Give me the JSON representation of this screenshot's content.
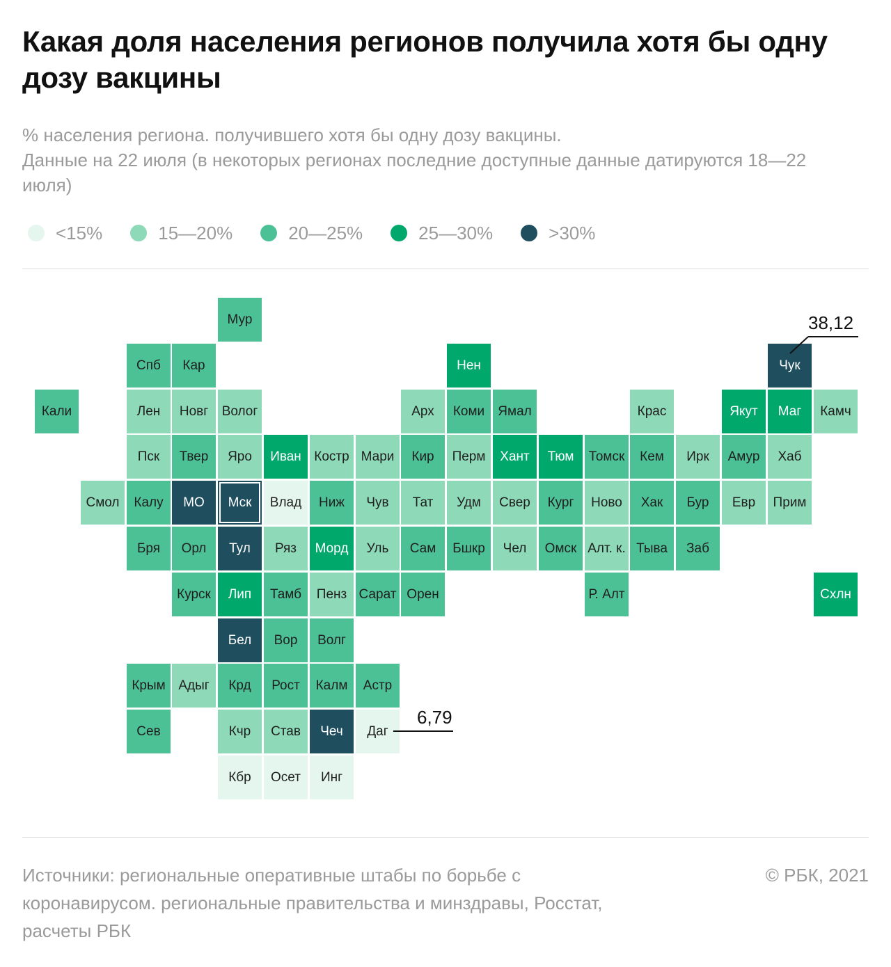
{
  "title": "Какая доля населения регионов получила хотя бы одну дозу вакцины",
  "subtitle": {
    "line1": "% населения региона. получившего хотя бы одну дозу вакцины.",
    "line2": "Данные на 22 июля (в некоторых регионах последние доступные данные датируются 18—22 июля)"
  },
  "legend": [
    {
      "label": "<15%",
      "color": "#e5f6ef"
    },
    {
      "label": "15—20%",
      "color": "#8dd9b8"
    },
    {
      "label": "20—25%",
      "color": "#4dc196"
    },
    {
      "label": "25—30%",
      "color": "#00a86b"
    },
    {
      "label": ">30%",
      "color": "#1f4e5f"
    }
  ],
  "regions": [
    {
      "name": "Мур",
      "col": 4,
      "row": 0,
      "cls": 2
    },
    {
      "name": "Спб",
      "col": 2,
      "row": 1,
      "cls": 2
    },
    {
      "name": "Кар",
      "col": 3,
      "row": 1,
      "cls": 2
    },
    {
      "name": "Нен",
      "col": 9,
      "row": 1,
      "cls": 3
    },
    {
      "name": "Чук",
      "col": 16,
      "row": 1,
      "cls": 4
    },
    {
      "name": "Кали",
      "col": 0,
      "row": 2,
      "cls": 2
    },
    {
      "name": "Лен",
      "col": 2,
      "row": 2,
      "cls": 1
    },
    {
      "name": "Новг",
      "col": 3,
      "row": 2,
      "cls": 1
    },
    {
      "name": "Волог",
      "col": 4,
      "row": 2,
      "cls": 1
    },
    {
      "name": "Арх",
      "col": 8,
      "row": 2,
      "cls": 1
    },
    {
      "name": "Коми",
      "col": 9,
      "row": 2,
      "cls": 2
    },
    {
      "name": "Ямал",
      "col": 10,
      "row": 2,
      "cls": 2
    },
    {
      "name": "Крас",
      "col": 13,
      "row": 2,
      "cls": 1
    },
    {
      "name": "Якут",
      "col": 15,
      "row": 2,
      "cls": 3
    },
    {
      "name": "Маг",
      "col": 16,
      "row": 2,
      "cls": 3
    },
    {
      "name": "Камч",
      "col": 17,
      "row": 2,
      "cls": 1
    },
    {
      "name": "Пск",
      "col": 2,
      "row": 3,
      "cls": 1
    },
    {
      "name": "Твер",
      "col": 3,
      "row": 3,
      "cls": 2
    },
    {
      "name": "Яро",
      "col": 4,
      "row": 3,
      "cls": 1
    },
    {
      "name": "Иван",
      "col": 5,
      "row": 3,
      "cls": 3
    },
    {
      "name": "Костр",
      "col": 6,
      "row": 3,
      "cls": 1
    },
    {
      "name": "Мари",
      "col": 7,
      "row": 3,
      "cls": 1
    },
    {
      "name": "Кир",
      "col": 8,
      "row": 3,
      "cls": 2
    },
    {
      "name": "Перм",
      "col": 9,
      "row": 3,
      "cls": 1
    },
    {
      "name": "Хант",
      "col": 10,
      "row": 3,
      "cls": 3
    },
    {
      "name": "Тюм",
      "col": 11,
      "row": 3,
      "cls": 3
    },
    {
      "name": "Томск",
      "col": 12,
      "row": 3,
      "cls": 2
    },
    {
      "name": "Кем",
      "col": 13,
      "row": 3,
      "cls": 2
    },
    {
      "name": "Ирк",
      "col": 14,
      "row": 3,
      "cls": 1
    },
    {
      "name": "Амур",
      "col": 15,
      "row": 3,
      "cls": 2
    },
    {
      "name": "Хаб",
      "col": 16,
      "row": 3,
      "cls": 1
    },
    {
      "name": "Смол",
      "col": 1,
      "row": 4,
      "cls": 1
    },
    {
      "name": "Калу",
      "col": 2,
      "row": 4,
      "cls": 2
    },
    {
      "name": "МО",
      "col": 3,
      "row": 4,
      "cls": 4
    },
    {
      "name": "Мск",
      "col": 4,
      "row": 4,
      "cls": 4,
      "outlined": true
    },
    {
      "name": "Влад",
      "col": 5,
      "row": 4,
      "cls": 0
    },
    {
      "name": "Ниж",
      "col": 6,
      "row": 4,
      "cls": 2
    },
    {
      "name": "Чув",
      "col": 7,
      "row": 4,
      "cls": 1
    },
    {
      "name": "Тат",
      "col": 8,
      "row": 4,
      "cls": 1
    },
    {
      "name": "Удм",
      "col": 9,
      "row": 4,
      "cls": 1
    },
    {
      "name": "Свер",
      "col": 10,
      "row": 4,
      "cls": 1
    },
    {
      "name": "Кург",
      "col": 11,
      "row": 4,
      "cls": 2
    },
    {
      "name": "Ново",
      "col": 12,
      "row": 4,
      "cls": 1
    },
    {
      "name": "Хак",
      "col": 13,
      "row": 4,
      "cls": 2
    },
    {
      "name": "Бур",
      "col": 14,
      "row": 4,
      "cls": 2
    },
    {
      "name": "Евр",
      "col": 15,
      "row": 4,
      "cls": 1
    },
    {
      "name": "Прим",
      "col": 16,
      "row": 4,
      "cls": 1
    },
    {
      "name": "Бря",
      "col": 2,
      "row": 5,
      "cls": 2
    },
    {
      "name": "Орл",
      "col": 3,
      "row": 5,
      "cls": 2
    },
    {
      "name": "Тул",
      "col": 4,
      "row": 5,
      "cls": 4
    },
    {
      "name": "Ряз",
      "col": 5,
      "row": 5,
      "cls": 1
    },
    {
      "name": "Морд",
      "col": 6,
      "row": 5,
      "cls": 3
    },
    {
      "name": "Уль",
      "col": 7,
      "row": 5,
      "cls": 1
    },
    {
      "name": "Сам",
      "col": 8,
      "row": 5,
      "cls": 2
    },
    {
      "name": "Бшкр",
      "col": 9,
      "row": 5,
      "cls": 2
    },
    {
      "name": "Чел",
      "col": 10,
      "row": 5,
      "cls": 1
    },
    {
      "name": "Омск",
      "col": 11,
      "row": 5,
      "cls": 2
    },
    {
      "name": "Алт. к.",
      "col": 12,
      "row": 5,
      "cls": 1
    },
    {
      "name": "Тыва",
      "col": 13,
      "row": 5,
      "cls": 2
    },
    {
      "name": "Заб",
      "col": 14,
      "row": 5,
      "cls": 2
    },
    {
      "name": "Курск",
      "col": 3,
      "row": 6,
      "cls": 2
    },
    {
      "name": "Лип",
      "col": 4,
      "row": 6,
      "cls": 3
    },
    {
      "name": "Тамб",
      "col": 5,
      "row": 6,
      "cls": 2
    },
    {
      "name": "Пенз",
      "col": 6,
      "row": 6,
      "cls": 1
    },
    {
      "name": "Сарат",
      "col": 7,
      "row": 6,
      "cls": 2
    },
    {
      "name": "Орен",
      "col": 8,
      "row": 6,
      "cls": 2
    },
    {
      "name": "Р. Алт",
      "col": 12,
      "row": 6,
      "cls": 2
    },
    {
      "name": "Схлн",
      "col": 17,
      "row": 6,
      "cls": 3
    },
    {
      "name": "Бел",
      "col": 4,
      "row": 7,
      "cls": 4
    },
    {
      "name": "Вор",
      "col": 5,
      "row": 7,
      "cls": 2
    },
    {
      "name": "Волг",
      "col": 6,
      "row": 7,
      "cls": 2
    },
    {
      "name": "Крым",
      "col": 2,
      "row": 8,
      "cls": 2
    },
    {
      "name": "Адыг",
      "col": 3,
      "row": 8,
      "cls": 1
    },
    {
      "name": "Крд",
      "col": 4,
      "row": 8,
      "cls": 2
    },
    {
      "name": "Рост",
      "col": 5,
      "row": 8,
      "cls": 2
    },
    {
      "name": "Калм",
      "col": 6,
      "row": 8,
      "cls": 2
    },
    {
      "name": "Астр",
      "col": 7,
      "row": 8,
      "cls": 2
    },
    {
      "name": "Сев",
      "col": 2,
      "row": 9,
      "cls": 2
    },
    {
      "name": "Кчр",
      "col": 4,
      "row": 9,
      "cls": 1
    },
    {
      "name": "Став",
      "col": 5,
      "row": 9,
      "cls": 1
    },
    {
      "name": "Чеч",
      "col": 6,
      "row": 9,
      "cls": 4
    },
    {
      "name": "Даг",
      "col": 7,
      "row": 9,
      "cls": 0
    },
    {
      "name": "Кбр",
      "col": 4,
      "row": 10,
      "cls": 0
    },
    {
      "name": "Осет",
      "col": 5,
      "row": 10,
      "cls": 0
    },
    {
      "name": "Инг",
      "col": 6,
      "row": 10,
      "cls": 0
    }
  ],
  "callouts": [
    {
      "region": "Чук",
      "value": "38,12"
    },
    {
      "region": "Даг",
      "value": "6,79"
    }
  ],
  "footer": {
    "source": "Источники: региональные оперативные штабы по борьбе с коронавирусом. региональные правительства и минздравы, Росстат, расчеты РБК",
    "copyright": "©  РБК, 2021"
  }
}
